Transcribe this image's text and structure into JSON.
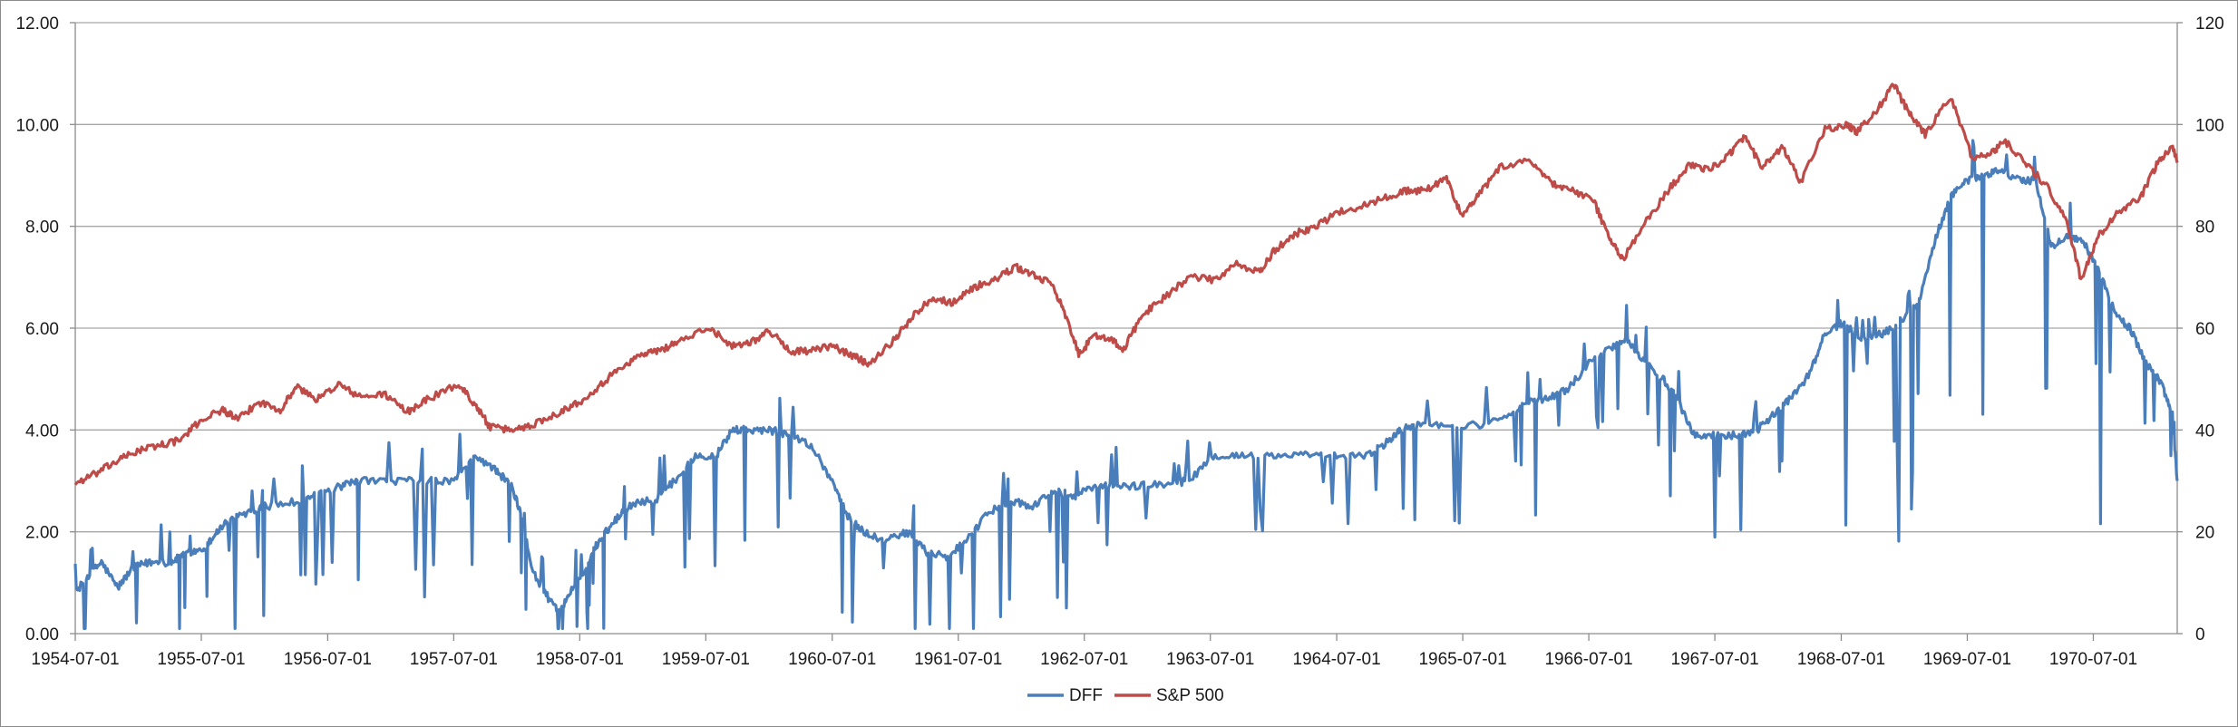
{
  "chart_data": {
    "type": "line",
    "title": "",
    "xlabel": "",
    "ylabel": "",
    "y2label": "",
    "grid": "horizontal",
    "legend_position": "bottom",
    "x_range": [
      "1954-07-01",
      "1971-03-01"
    ],
    "ylim_left": [
      0,
      12
    ],
    "ylim_right": [
      0,
      120
    ],
    "yticks_left": [
      "0.00",
      "2.00",
      "4.00",
      "6.00",
      "8.00",
      "10.00",
      "12.00"
    ],
    "yticks_right": [
      "0",
      "20",
      "40",
      "60",
      "80",
      "100",
      "120"
    ],
    "xticks": [
      "1954-07-01",
      "1955-07-01",
      "1956-07-01",
      "1957-07-01",
      "1958-07-01",
      "1959-07-01",
      "1960-07-01",
      "1961-07-01",
      "1962-07-01",
      "1963-07-01",
      "1964-07-01",
      "1965-07-01",
      "1966-07-01",
      "1967-07-01",
      "1968-07-01",
      "1969-07-01",
      "1970-07-01"
    ],
    "series": [
      {
        "name": "DFF",
        "axis": "left",
        "color": "#4a7ebb",
        "points": [
          [
            "1954-07-01",
            0.8
          ],
          [
            "1954-08-15",
            1.2
          ],
          [
            "1954-09-15",
            1.4
          ],
          [
            "1954-11-01",
            0.9
          ],
          [
            "1954-12-15",
            1.3
          ],
          [
            "1955-02-01",
            1.4
          ],
          [
            "1955-04-01",
            1.4
          ],
          [
            "1955-05-01",
            1.5
          ],
          [
            "1955-06-01",
            1.6
          ],
          [
            "1955-07-15",
            1.7
          ],
          [
            "1955-08-15",
            2.0
          ],
          [
            "1955-09-15",
            2.2
          ],
          [
            "1955-11-15",
            2.4
          ],
          [
            "1956-01-01",
            2.5
          ],
          [
            "1956-04-01",
            2.6
          ],
          [
            "1956-06-01",
            2.75
          ],
          [
            "1956-08-15",
            2.9
          ],
          [
            "1956-10-01",
            3.0
          ],
          [
            "1957-01-01",
            3.0
          ],
          [
            "1957-04-01",
            3.0
          ],
          [
            "1957-07-01",
            3.0
          ],
          [
            "1957-09-01",
            3.5
          ],
          [
            "1957-11-01",
            3.2
          ],
          [
            "1957-12-15",
            2.9
          ],
          [
            "1958-01-15",
            2.3
          ],
          [
            "1958-02-15",
            1.2
          ],
          [
            "1958-04-01",
            0.7
          ],
          [
            "1958-05-01",
            0.4
          ],
          [
            "1958-06-01",
            0.8
          ],
          [
            "1958-07-15",
            1.2
          ],
          [
            "1958-08-15",
            1.7
          ],
          [
            "1958-09-15",
            2.0
          ],
          [
            "1958-11-01",
            2.4
          ],
          [
            "1958-12-15",
            2.6
          ],
          [
            "1959-02-01",
            2.6
          ],
          [
            "1959-04-01",
            3.0
          ],
          [
            "1959-06-01",
            3.5
          ],
          [
            "1959-08-01",
            3.5
          ],
          [
            "1959-09-15",
            4.0
          ],
          [
            "1959-11-01",
            4.0
          ],
          [
            "1960-01-01",
            4.0
          ],
          [
            "1960-03-01",
            3.9
          ],
          [
            "1960-05-01",
            3.7
          ],
          [
            "1960-07-01",
            3.0
          ],
          [
            "1960-08-15",
            2.3
          ],
          [
            "1960-10-01",
            2.0
          ],
          [
            "1960-12-01",
            1.8
          ],
          [
            "1961-02-01",
            2.0
          ],
          [
            "1961-04-01",
            1.6
          ],
          [
            "1961-06-01",
            1.5
          ],
          [
            "1961-08-01",
            1.9
          ],
          [
            "1961-10-01",
            2.4
          ],
          [
            "1961-12-01",
            2.6
          ],
          [
            "1962-02-01",
            2.5
          ],
          [
            "1962-04-01",
            2.8
          ],
          [
            "1962-06-01",
            2.7
          ],
          [
            "1962-08-01",
            2.9
          ],
          [
            "1962-10-01",
            2.9
          ],
          [
            "1962-12-01",
            2.9
          ],
          [
            "1963-03-01",
            2.95
          ],
          [
            "1963-05-01",
            3.0
          ],
          [
            "1963-07-15",
            3.5
          ],
          [
            "1963-10-01",
            3.5
          ],
          [
            "1964-01-01",
            3.5
          ],
          [
            "1964-04-01",
            3.5
          ],
          [
            "1964-07-01",
            3.5
          ],
          [
            "1964-10-01",
            3.5
          ],
          [
            "1964-12-01",
            3.8
          ],
          [
            "1965-01-01",
            4.0
          ],
          [
            "1965-03-01",
            4.1
          ],
          [
            "1965-06-01",
            4.1
          ],
          [
            "1965-09-01",
            4.1
          ],
          [
            "1965-12-01",
            4.4
          ],
          [
            "1966-01-15",
            4.6
          ],
          [
            "1966-03-01",
            4.6
          ],
          [
            "1966-05-01",
            4.8
          ],
          [
            "1966-07-01",
            5.3
          ],
          [
            "1966-09-01",
            5.6
          ],
          [
            "1966-10-15",
            5.8
          ],
          [
            "1966-12-01",
            5.4
          ],
          [
            "1967-02-01",
            5.0
          ],
          [
            "1967-03-15",
            4.6
          ],
          [
            "1967-05-01",
            3.9
          ],
          [
            "1967-07-01",
            3.9
          ],
          [
            "1967-09-01",
            3.9
          ],
          [
            "1967-11-01",
            4.0
          ],
          [
            "1967-12-15",
            4.3
          ],
          [
            "1968-02-01",
            4.6
          ],
          [
            "1968-04-01",
            5.1
          ],
          [
            "1968-05-15",
            5.9
          ],
          [
            "1968-07-01",
            6.1
          ],
          [
            "1968-09-01",
            5.8
          ],
          [
            "1968-11-01",
            5.9
          ],
          [
            "1969-01-01",
            6.2
          ],
          [
            "1969-02-15",
            6.6
          ],
          [
            "1969-04-01",
            7.8
          ],
          [
            "1969-05-15",
            8.6
          ],
          [
            "1969-07-01",
            8.9
          ],
          [
            "1969-08-15",
            9.0
          ],
          [
            "1969-10-01",
            9.1
          ],
          [
            "1969-12-01",
            8.9
          ],
          [
            "1970-01-15",
            8.9
          ],
          [
            "1970-03-01",
            7.6
          ],
          [
            "1970-04-15",
            7.8
          ],
          [
            "1970-06-01",
            7.7
          ],
          [
            "1970-07-15",
            7.2
          ],
          [
            "1970-09-01",
            6.3
          ],
          [
            "1970-10-15",
            6.0
          ],
          [
            "1970-12-01",
            5.3
          ],
          [
            "1971-01-15",
            4.9
          ],
          [
            "1971-02-15",
            4.3
          ],
          [
            "1971-03-01",
            3.0
          ]
        ]
      },
      {
        "name": "S&P 500",
        "axis": "right",
        "color": "#be4b48",
        "points": [
          [
            "1954-07-01",
            29.5
          ],
          [
            "1954-09-01",
            31.5
          ],
          [
            "1954-11-01",
            34.0
          ],
          [
            "1955-01-01",
            36.0
          ],
          [
            "1955-03-01",
            37.0
          ],
          [
            "1955-05-01",
            38.0
          ],
          [
            "1955-07-01",
            42.0
          ],
          [
            "1955-09-01",
            44.0
          ],
          [
            "1955-10-15",
            42.0
          ],
          [
            "1955-12-15",
            45.5
          ],
          [
            "1956-02-15",
            44.0
          ],
          [
            "1956-04-01",
            48.5
          ],
          [
            "1956-06-01",
            46.0
          ],
          [
            "1956-08-01",
            49.0
          ],
          [
            "1956-10-01",
            46.5
          ],
          [
            "1956-12-15",
            47.0
          ],
          [
            "1957-02-15",
            43.5
          ],
          [
            "1957-04-15",
            46.0
          ],
          [
            "1957-07-15",
            49.0
          ],
          [
            "1957-09-01",
            45.0
          ],
          [
            "1957-10-15",
            40.5
          ],
          [
            "1957-12-15",
            40.0
          ],
          [
            "1958-02-15",
            41.0
          ],
          [
            "1958-05-01",
            43.5
          ],
          [
            "1958-07-01",
            45.5
          ],
          [
            "1958-09-01",
            49.0
          ],
          [
            "1958-11-01",
            52.5
          ],
          [
            "1958-12-31",
            55.0
          ],
          [
            "1959-02-15",
            55.5
          ],
          [
            "1959-04-15",
            57.5
          ],
          [
            "1959-07-15",
            60.0
          ],
          [
            "1959-09-15",
            56.5
          ],
          [
            "1959-11-15",
            57.5
          ],
          [
            "1960-01-01",
            59.5
          ],
          [
            "1960-03-01",
            55.5
          ],
          [
            "1960-05-01",
            55.5
          ],
          [
            "1960-07-01",
            56.5
          ],
          [
            "1960-09-01",
            54.5
          ],
          [
            "1960-10-15",
            53.0
          ],
          [
            "1960-12-31",
            58.0
          ],
          [
            "1961-02-15",
            62.0
          ],
          [
            "1961-04-15",
            66.0
          ],
          [
            "1961-06-15",
            65.0
          ],
          [
            "1961-08-15",
            68.0
          ],
          [
            "1961-10-15",
            69.5
          ],
          [
            "1961-12-15",
            72.0
          ],
          [
            "1962-02-01",
            70.5
          ],
          [
            "1962-04-01",
            68.5
          ],
          [
            "1962-05-01",
            63.5
          ],
          [
            "1962-06-15",
            55.0
          ],
          [
            "1962-08-01",
            58.5
          ],
          [
            "1962-09-15",
            58.0
          ],
          [
            "1962-10-20",
            55.5
          ],
          [
            "1962-12-15",
            62.5
          ],
          [
            "1963-02-15",
            66.0
          ],
          [
            "1963-05-01",
            70.0
          ],
          [
            "1963-07-15",
            69.5
          ],
          [
            "1963-09-15",
            72.5
          ],
          [
            "1963-11-22",
            71.0
          ],
          [
            "1963-12-31",
            75.0
          ],
          [
            "1964-03-01",
            78.5
          ],
          [
            "1964-05-01",
            80.0
          ],
          [
            "1964-07-15",
            83.0
          ],
          [
            "1964-09-15",
            84.0
          ],
          [
            "1964-11-15",
            85.5
          ],
          [
            "1965-01-15",
            87.0
          ],
          [
            "1965-03-15",
            87.0
          ],
          [
            "1965-05-15",
            89.5
          ],
          [
            "1965-06-28",
            82.0
          ],
          [
            "1965-08-15",
            86.0
          ],
          [
            "1965-10-15",
            91.5
          ],
          [
            "1966-01-15",
            93.0
          ],
          [
            "1966-03-15",
            88.5
          ],
          [
            "1966-05-15",
            87.0
          ],
          [
            "1966-07-15",
            85.0
          ],
          [
            "1966-08-31",
            77.5
          ],
          [
            "1966-10-07",
            73.5
          ],
          [
            "1966-12-15",
            81.0
          ],
          [
            "1967-02-15",
            87.0
          ],
          [
            "1967-04-15",
            92.0
          ],
          [
            "1967-06-15",
            91.0
          ],
          [
            "1967-08-15",
            94.5
          ],
          [
            "1967-09-25",
            97.5
          ],
          [
            "1967-11-15",
            91.5
          ],
          [
            "1968-01-15",
            95.5
          ],
          [
            "1968-03-05",
            88.5
          ],
          [
            "1968-05-15",
            99.0
          ],
          [
            "1968-07-15",
            100.0
          ],
          [
            "1968-08-15",
            98.5
          ],
          [
            "1968-10-15",
            103.0
          ],
          [
            "1968-11-29",
            108.0
          ],
          [
            "1969-01-15",
            102.0
          ],
          [
            "1969-03-01",
            98.0
          ],
          [
            "1969-05-14",
            105.5
          ],
          [
            "1969-07-15",
            93.5
          ],
          [
            "1969-09-15",
            94.5
          ],
          [
            "1969-10-15",
            97.0
          ],
          [
            "1969-12-15",
            92.5
          ],
          [
            "1970-02-15",
            88.0
          ],
          [
            "1970-04-15",
            81.0
          ],
          [
            "1970-05-26",
            69.5
          ],
          [
            "1970-07-15",
            78.0
          ],
          [
            "1970-09-15",
            83.0
          ],
          [
            "1970-11-15",
            85.5
          ],
          [
            "1970-12-31",
            92.0
          ],
          [
            "1971-02-15",
            96.0
          ],
          [
            "1971-03-01",
            92.5
          ]
        ]
      }
    ]
  }
}
